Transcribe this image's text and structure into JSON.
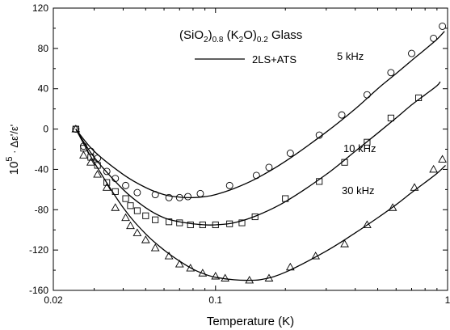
{
  "chart_data": {
    "type": "scatter",
    "title_parts": [
      "(SiO",
      "2",
      ")",
      "0.8",
      " (K",
      "2",
      "O)",
      "0.2",
      "  Glass"
    ],
    "xlabel": "Temperature (K)",
    "ylabel": {
      "base": "10",
      "exp": "5",
      "rest": " · Δε'/ε'"
    },
    "xscale": "log",
    "xlim": [
      0.02,
      1.0
    ],
    "ylim": [
      -160,
      120
    ],
    "xticks": [
      0.02,
      0.1,
      1
    ],
    "xtick_labels": [
      "0.02",
      "0.1",
      "1"
    ],
    "yticks": [
      -160,
      -120,
      -80,
      -40,
      0,
      40,
      80,
      120
    ],
    "legend": {
      "label": "2LS+ATS",
      "placement": "top-center"
    },
    "grid": false,
    "series": [
      {
        "name": "5 kHz",
        "marker": "circle",
        "points": [
          [
            0.025,
            0
          ],
          [
            0.027,
            -17
          ],
          [
            0.029,
            -22
          ],
          [
            0.031,
            -29
          ],
          [
            0.034,
            -42
          ],
          [
            0.037,
            -49
          ],
          [
            0.041,
            -56
          ],
          [
            0.046,
            -63
          ],
          [
            0.055,
            -65
          ],
          [
            0.063,
            -68
          ],
          [
            0.07,
            -68
          ],
          [
            0.076,
            -67
          ],
          [
            0.086,
            -64
          ],
          [
            0.115,
            -56
          ],
          [
            0.15,
            -46
          ],
          [
            0.17,
            -38
          ],
          [
            0.21,
            -24
          ],
          [
            0.28,
            -6
          ],
          [
            0.35,
            14
          ],
          [
            0.45,
            34
          ],
          [
            0.57,
            56
          ],
          [
            0.7,
            75
          ],
          [
            0.87,
            90
          ],
          [
            0.95,
            102
          ]
        ],
        "fit": [
          [
            0.025,
            0
          ],
          [
            0.03,
            -22
          ],
          [
            0.04,
            -45
          ],
          [
            0.05,
            -58
          ],
          [
            0.06,
            -65
          ],
          [
            0.07,
            -67.5
          ],
          [
            0.08,
            -68
          ],
          [
            0.09,
            -67
          ],
          [
            0.1,
            -65
          ],
          [
            0.12,
            -59
          ],
          [
            0.15,
            -49
          ],
          [
            0.2,
            -32
          ],
          [
            0.3,
            -3
          ],
          [
            0.4,
            20
          ],
          [
            0.5,
            40
          ],
          [
            0.6,
            55
          ],
          [
            0.7,
            68
          ],
          [
            0.8,
            79
          ],
          [
            0.9,
            89
          ],
          [
            0.97,
            97
          ]
        ]
      },
      {
        "name": "10 kHz",
        "marker": "square",
        "points": [
          [
            0.025,
            0
          ],
          [
            0.027,
            -19
          ],
          [
            0.029,
            -28
          ],
          [
            0.031,
            -36
          ],
          [
            0.034,
            -53
          ],
          [
            0.037,
            -62
          ],
          [
            0.041,
            -69
          ],
          [
            0.043,
            -76
          ],
          [
            0.046,
            -81
          ],
          [
            0.05,
            -86
          ],
          [
            0.055,
            -90
          ],
          [
            0.063,
            -92
          ],
          [
            0.07,
            -93
          ],
          [
            0.078,
            -95
          ],
          [
            0.088,
            -95
          ],
          [
            0.1,
            -95
          ],
          [
            0.115,
            -94
          ],
          [
            0.13,
            -93
          ],
          [
            0.148,
            -87
          ],
          [
            0.2,
            -69
          ],
          [
            0.28,
            -52
          ],
          [
            0.36,
            -33
          ],
          [
            0.45,
            -13
          ],
          [
            0.57,
            11
          ],
          [
            0.75,
            31
          ]
        ],
        "fit": [
          [
            0.025,
            0
          ],
          [
            0.03,
            -28
          ],
          [
            0.04,
            -60
          ],
          [
            0.05,
            -78
          ],
          [
            0.06,
            -88
          ],
          [
            0.07,
            -92
          ],
          [
            0.08,
            -94
          ],
          [
            0.09,
            -95
          ],
          [
            0.1,
            -95
          ],
          [
            0.12,
            -93
          ],
          [
            0.15,
            -86
          ],
          [
            0.2,
            -72
          ],
          [
            0.3,
            -45
          ],
          [
            0.4,
            -22
          ],
          [
            0.5,
            -4
          ],
          [
            0.6,
            11
          ],
          [
            0.7,
            24
          ],
          [
            0.8,
            34
          ],
          [
            0.9,
            43
          ],
          [
            0.93,
            47
          ]
        ]
      },
      {
        "name": "30 kHz",
        "marker": "triangle",
        "points": [
          [
            0.025,
            0
          ],
          [
            0.027,
            -26
          ],
          [
            0.029,
            -33
          ],
          [
            0.031,
            -45
          ],
          [
            0.034,
            -58
          ],
          [
            0.037,
            -78
          ],
          [
            0.041,
            -88
          ],
          [
            0.043,
            -96
          ],
          [
            0.046,
            -103
          ],
          [
            0.05,
            -110
          ],
          [
            0.055,
            -118
          ],
          [
            0.063,
            -126
          ],
          [
            0.07,
            -134
          ],
          [
            0.078,
            -138
          ],
          [
            0.088,
            -143
          ],
          [
            0.1,
            -146
          ],
          [
            0.11,
            -148
          ],
          [
            0.14,
            -150
          ],
          [
            0.17,
            -148
          ],
          [
            0.21,
            -137
          ],
          [
            0.27,
            -126
          ],
          [
            0.36,
            -114
          ],
          [
            0.45,
            -95
          ],
          [
            0.58,
            -78
          ],
          [
            0.72,
            -58
          ],
          [
            0.87,
            -40
          ],
          [
            0.95,
            -30
          ]
        ],
        "fit": [
          [
            0.025,
            0
          ],
          [
            0.03,
            -33
          ],
          [
            0.04,
            -78
          ],
          [
            0.05,
            -104
          ],
          [
            0.06,
            -120
          ],
          [
            0.07,
            -131
          ],
          [
            0.08,
            -139
          ],
          [
            0.09,
            -144
          ],
          [
            0.1,
            -147
          ],
          [
            0.12,
            -149.5
          ],
          [
            0.14,
            -150
          ],
          [
            0.16,
            -149
          ],
          [
            0.2,
            -142
          ],
          [
            0.3,
            -121
          ],
          [
            0.4,
            -103
          ],
          [
            0.5,
            -88
          ],
          [
            0.6,
            -75
          ],
          [
            0.7,
            -63
          ],
          [
            0.8,
            -53
          ],
          [
            0.9,
            -44
          ],
          [
            0.98,
            -36
          ]
        ]
      }
    ],
    "annotations": [
      "5 kHz",
      "10 kHz",
      "30 kHz"
    ]
  }
}
